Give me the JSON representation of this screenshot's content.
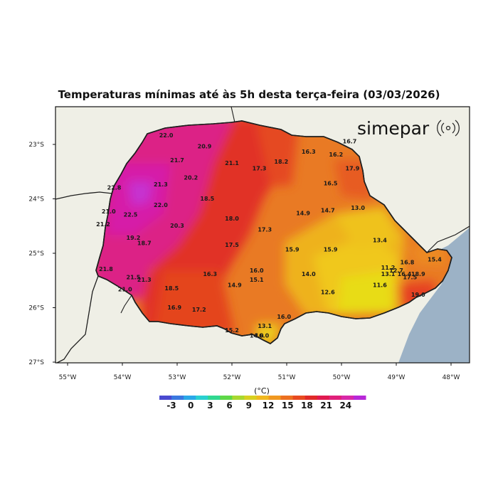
{
  "title": "Temperaturas mínimas até às 5h desta terça-feira (03/03/2026)",
  "brand": "simepar",
  "colorbar": {
    "unit": "(°C)",
    "ticks": [
      "-3",
      "0",
      "3",
      "6",
      "9",
      "12",
      "15",
      "18",
      "21",
      "24"
    ],
    "colors": [
      "#4a4ad0",
      "#3a78e0",
      "#2aa8e8",
      "#2ad0d0",
      "#30d890",
      "#5ed848",
      "#a8d830",
      "#d8d020",
      "#f0b820",
      "#f09820",
      "#ec7020",
      "#e84a20",
      "#e02a28",
      "#e01a50",
      "#e0207a",
      "#d828a8",
      "#b828d8"
    ]
  },
  "axes": {
    "lon_labels": [
      "55°W",
      "54°W",
      "53°W",
      "52°W",
      "51°W",
      "50°W",
      "49°W",
      "48°W"
    ],
    "lat_labels": [
      "23°S",
      "24°S",
      "25°S",
      "26°S",
      "27°S"
    ]
  },
  "values": [
    {
      "text": "22.0",
      "lon": -53.2,
      "lat": -22.87
    },
    {
      "text": "20.9",
      "lon": -52.5,
      "lat": -23.07
    },
    {
      "text": "21.7",
      "lon": -53.0,
      "lat": -23.33
    },
    {
      "text": "21.1",
      "lon": -52.0,
      "lat": -23.38
    },
    {
      "text": "17.3",
      "lon": -51.5,
      "lat": -23.48
    },
    {
      "text": "18.2",
      "lon": -51.1,
      "lat": -23.35
    },
    {
      "text": "16.3",
      "lon": -50.6,
      "lat": -23.17
    },
    {
      "text": "16.2",
      "lon": -50.1,
      "lat": -23.22
    },
    {
      "text": "16.7",
      "lon": -49.85,
      "lat": -22.98
    },
    {
      "text": "17.9",
      "lon": -49.8,
      "lat": -23.48
    },
    {
      "text": "16.5",
      "lon": -50.2,
      "lat": -23.75
    },
    {
      "text": "22.8",
      "lon": -54.15,
      "lat": -23.83
    },
    {
      "text": "21.3",
      "lon": -53.3,
      "lat": -23.77
    },
    {
      "text": "20.2",
      "lon": -52.75,
      "lat": -23.65
    },
    {
      "text": "18.5",
      "lon": -52.45,
      "lat": -24.03
    },
    {
      "text": "21.0",
      "lon": -54.25,
      "lat": -24.27
    },
    {
      "text": "22.5",
      "lon": -53.85,
      "lat": -24.33
    },
    {
      "text": "22.0",
      "lon": -53.3,
      "lat": -24.15
    },
    {
      "text": "21.2",
      "lon": -54.35,
      "lat": -24.5
    },
    {
      "text": "20.3",
      "lon": -53.0,
      "lat": -24.53
    },
    {
      "text": "18.0",
      "lon": -52.0,
      "lat": -24.4
    },
    {
      "text": "17.3",
      "lon": -51.4,
      "lat": -24.6
    },
    {
      "text": "14.9",
      "lon": -50.7,
      "lat": -24.3
    },
    {
      "text": "14.7",
      "lon": -50.25,
      "lat": -24.25
    },
    {
      "text": "13.0",
      "lon": -49.7,
      "lat": -24.2
    },
    {
      "text": "19.2",
      "lon": -53.8,
      "lat": -24.75
    },
    {
      "text": "18.7",
      "lon": -53.6,
      "lat": -24.85
    },
    {
      "text": "17.5",
      "lon": -52.0,
      "lat": -24.88
    },
    {
      "text": "15.9",
      "lon": -50.9,
      "lat": -24.97
    },
    {
      "text": "15.9",
      "lon": -50.2,
      "lat": -24.97
    },
    {
      "text": "13.4",
      "lon": -49.3,
      "lat": -24.8
    },
    {
      "text": "21.8",
      "lon": -54.3,
      "lat": -25.33
    },
    {
      "text": "21.5",
      "lon": -53.8,
      "lat": -25.48
    },
    {
      "text": "21.3",
      "lon": -53.6,
      "lat": -25.52
    },
    {
      "text": "16.3",
      "lon": -52.4,
      "lat": -25.42
    },
    {
      "text": "16.0",
      "lon": -51.55,
      "lat": -25.35
    },
    {
      "text": "15.1",
      "lon": -51.55,
      "lat": -25.52
    },
    {
      "text": "14.0",
      "lon": -50.6,
      "lat": -25.42
    },
    {
      "text": "14.9",
      "lon": -51.95,
      "lat": -25.62
    },
    {
      "text": "21.0",
      "lon": -53.95,
      "lat": -25.7
    },
    {
      "text": "18.5",
      "lon": -53.1,
      "lat": -25.68
    },
    {
      "text": "12.6",
      "lon": -50.25,
      "lat": -25.75
    },
    {
      "text": "11.6",
      "lon": -49.3,
      "lat": -25.62
    },
    {
      "text": "11.2",
      "lon": -49.15,
      "lat": -25.3
    },
    {
      "text": "12.7",
      "lon": -49.0,
      "lat": -25.35
    },
    {
      "text": "13.1",
      "lon": -49.15,
      "lat": -25.42
    },
    {
      "text": "16.8",
      "lon": -48.8,
      "lat": -25.2
    },
    {
      "text": "16.4",
      "lon": -48.85,
      "lat": -25.42
    },
    {
      "text": "17.5",
      "lon": -48.75,
      "lat": -25.48
    },
    {
      "text": "18.9",
      "lon": -48.6,
      "lat": -25.42
    },
    {
      "text": "15.4",
      "lon": -48.3,
      "lat": -25.15
    },
    {
      "text": "19.0",
      "lon": -48.6,
      "lat": -25.8
    },
    {
      "text": "16.9",
      "lon": -53.05,
      "lat": -26.03
    },
    {
      "text": "17.2",
      "lon": -52.6,
      "lat": -26.07
    },
    {
      "text": "16.0",
      "lon": -51.05,
      "lat": -26.2
    },
    {
      "text": "13.1",
      "lon": -51.4,
      "lat": -26.37
    },
    {
      "text": "15.2",
      "lon": -52.0,
      "lat": -26.45
    },
    {
      "text": "14.0",
      "lon": -51.55,
      "lat": -26.55
    },
    {
      "text": "16.0",
      "lon": -51.45,
      "lat": -26.55
    }
  ]
}
